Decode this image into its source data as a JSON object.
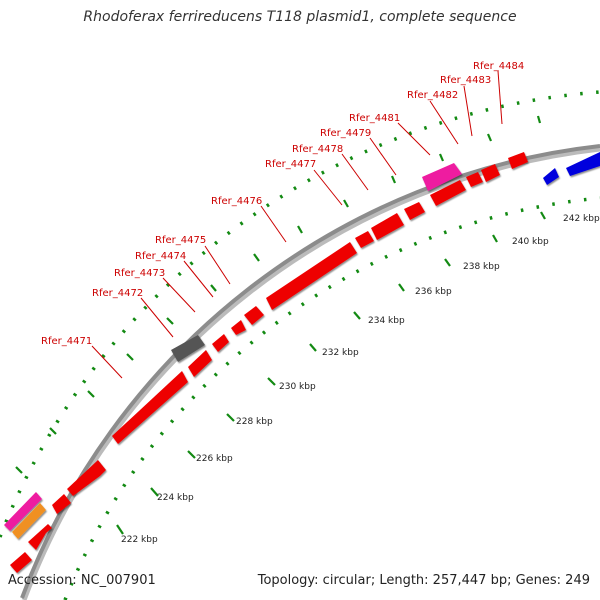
{
  "title": "Rhodoferax ferrireducens T118 plasmid1, complete sequence",
  "footer": {
    "accession": "Accession: NC_007901",
    "summary": "Topology: circular; Length: 257,447 bp; Genes: 249"
  },
  "colors": {
    "backbone": "#8c8c8c",
    "tick": "#138a13",
    "label": "#cc0000",
    "leader": "#cc0000",
    "gene_forward": "#ee0000",
    "gene_reverse": "#0000dd",
    "gene_gray": "#555555",
    "gene_pink": "#ee1aa0",
    "gene_orange": "#f09020"
  },
  "scale_labels": [
    "222 kbp",
    "224 kbp",
    "226 kbp",
    "228 kbp",
    "230 kbp",
    "232 kbp",
    "234 kbp",
    "236 kbp",
    "238 kbp",
    "240 kbp",
    "242 kbp"
  ],
  "gene_labels": [
    "Rfer_4471",
    "Rfer_4472",
    "Rfer_4473",
    "Rfer_4474",
    "Rfer_4475",
    "Rfer_4476",
    "Rfer_4477",
    "Rfer_4478",
    "Rfer_4479",
    "Rfer_4481",
    "Rfer_4482",
    "Rfer_4483",
    "Rfer_4484"
  ]
}
